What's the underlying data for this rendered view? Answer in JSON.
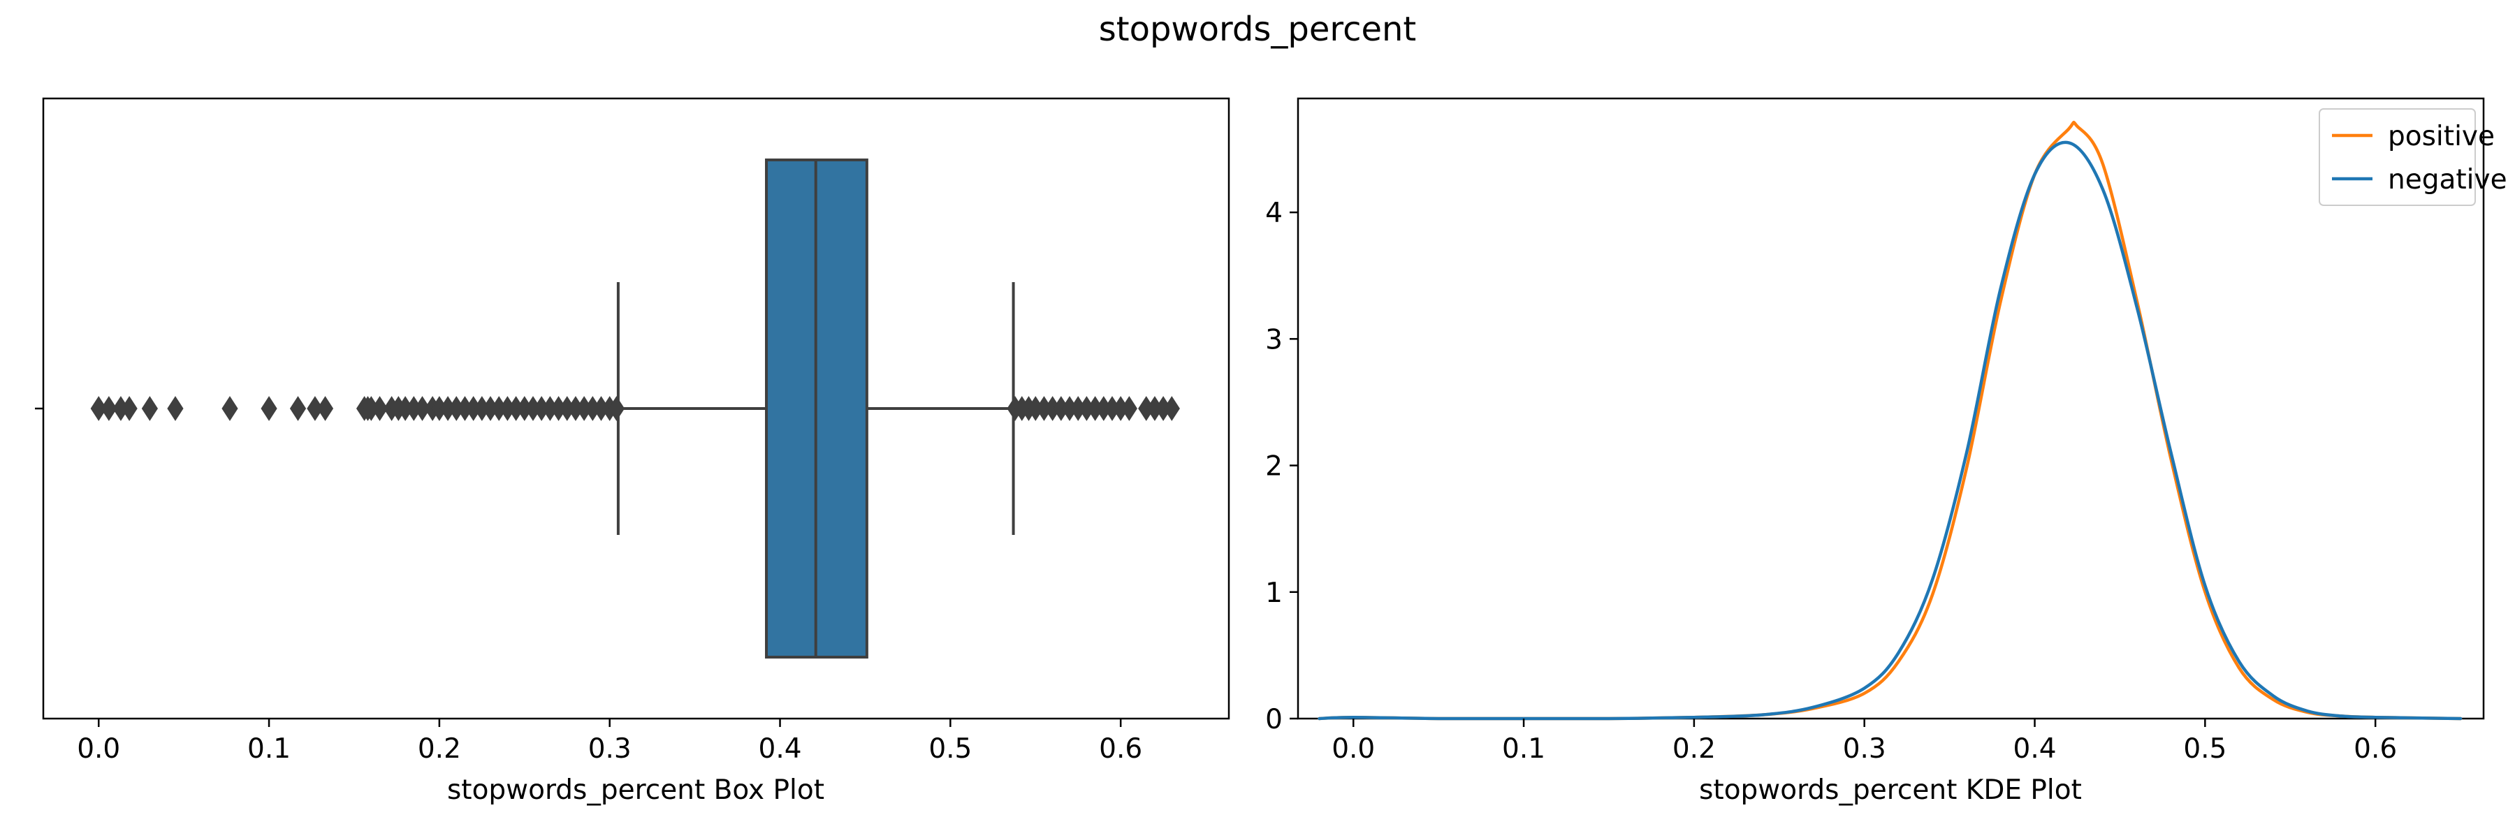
{
  "figure_title": "stopwords_percent",
  "colors": {
    "box_fill": "#3274a1",
    "box_edge": "#3f3f3f",
    "positive": "#ff7f0e",
    "negative": "#1f77b4"
  },
  "chart_data": [
    {
      "type": "box",
      "xlabel": "stopwords_percent Box Plot",
      "ylabel": "",
      "xlim": [
        -0.0325,
        0.6635
      ],
      "xticks": [
        0.0,
        0.1,
        0.2,
        0.3,
        0.4,
        0.5,
        0.6
      ],
      "xtick_labels": [
        "0.0",
        "0.1",
        "0.2",
        "0.3",
        "0.4",
        "0.5",
        "0.6"
      ],
      "stats": {
        "whisker_low": 0.305,
        "q1": 0.392,
        "median": 0.421,
        "q3": 0.451,
        "whisker_high": 0.537
      },
      "outliers": [
        0.0,
        0.006,
        0.013,
        0.018,
        0.03,
        0.045,
        0.077,
        0.1,
        0.117,
        0.127,
        0.133,
        0.156,
        0.158,
        0.16,
        0.165,
        0.172,
        0.176,
        0.18,
        0.185,
        0.19,
        0.196,
        0.2,
        0.205,
        0.21,
        0.215,
        0.22,
        0.225,
        0.23,
        0.235,
        0.24,
        0.245,
        0.25,
        0.255,
        0.26,
        0.265,
        0.27,
        0.275,
        0.28,
        0.285,
        0.29,
        0.295,
        0.3,
        0.304,
        0.538,
        0.542,
        0.546,
        0.55,
        0.555,
        0.56,
        0.565,
        0.57,
        0.575,
        0.58,
        0.585,
        0.59,
        0.595,
        0.6,
        0.605,
        0.615,
        0.62,
        0.625,
        0.63
      ]
    },
    {
      "type": "line",
      "xlabel": "stopwords_percent KDE Plot",
      "ylabel": "",
      "xlim": [
        -0.0325,
        0.6635
      ],
      "ylim": [
        0,
        4.9
      ],
      "xticks": [
        0.0,
        0.1,
        0.2,
        0.3,
        0.4,
        0.5,
        0.6
      ],
      "xtick_labels": [
        "0.0",
        "0.1",
        "0.2",
        "0.3",
        "0.4",
        "0.5",
        "0.6"
      ],
      "yticks": [
        0,
        1,
        2,
        3,
        4
      ],
      "ytick_labels": [
        "0",
        "1",
        "2",
        "3",
        "4"
      ],
      "legend": "top-right",
      "series": [
        {
          "name": "positive",
          "x": [
            -0.02,
            0.0,
            0.05,
            0.1,
            0.15,
            0.2,
            0.24,
            0.27,
            0.3,
            0.32,
            0.34,
            0.36,
            0.38,
            0.4,
            0.42,
            0.425,
            0.44,
            0.46,
            0.48,
            0.5,
            0.52,
            0.54,
            0.56,
            0.58,
            0.6,
            0.65
          ],
          "y": [
            0.0,
            0.01,
            0.0,
            0.0,
            0.0,
            0.01,
            0.03,
            0.08,
            0.2,
            0.45,
            0.98,
            1.98,
            3.3,
            4.3,
            4.66,
            4.68,
            4.38,
            3.3,
            2.05,
            1.0,
            0.4,
            0.15,
            0.05,
            0.02,
            0.01,
            0.0
          ]
        },
        {
          "name": "negative",
          "x": [
            -0.02,
            0.0,
            0.05,
            0.1,
            0.15,
            0.2,
            0.24,
            0.27,
            0.3,
            0.32,
            0.34,
            0.36,
            0.38,
            0.4,
            0.42,
            0.44,
            0.46,
            0.48,
            0.5,
            0.52,
            0.54,
            0.56,
            0.58,
            0.6,
            0.65
          ],
          "y": [
            0.0,
            0.01,
            0.0,
            0.0,
            0.0,
            0.01,
            0.03,
            0.09,
            0.24,
            0.52,
            1.1,
            2.1,
            3.4,
            4.3,
            4.55,
            4.18,
            3.25,
            2.1,
            1.05,
            0.45,
            0.18,
            0.06,
            0.02,
            0.01,
            0.0
          ]
        }
      ]
    }
  ]
}
